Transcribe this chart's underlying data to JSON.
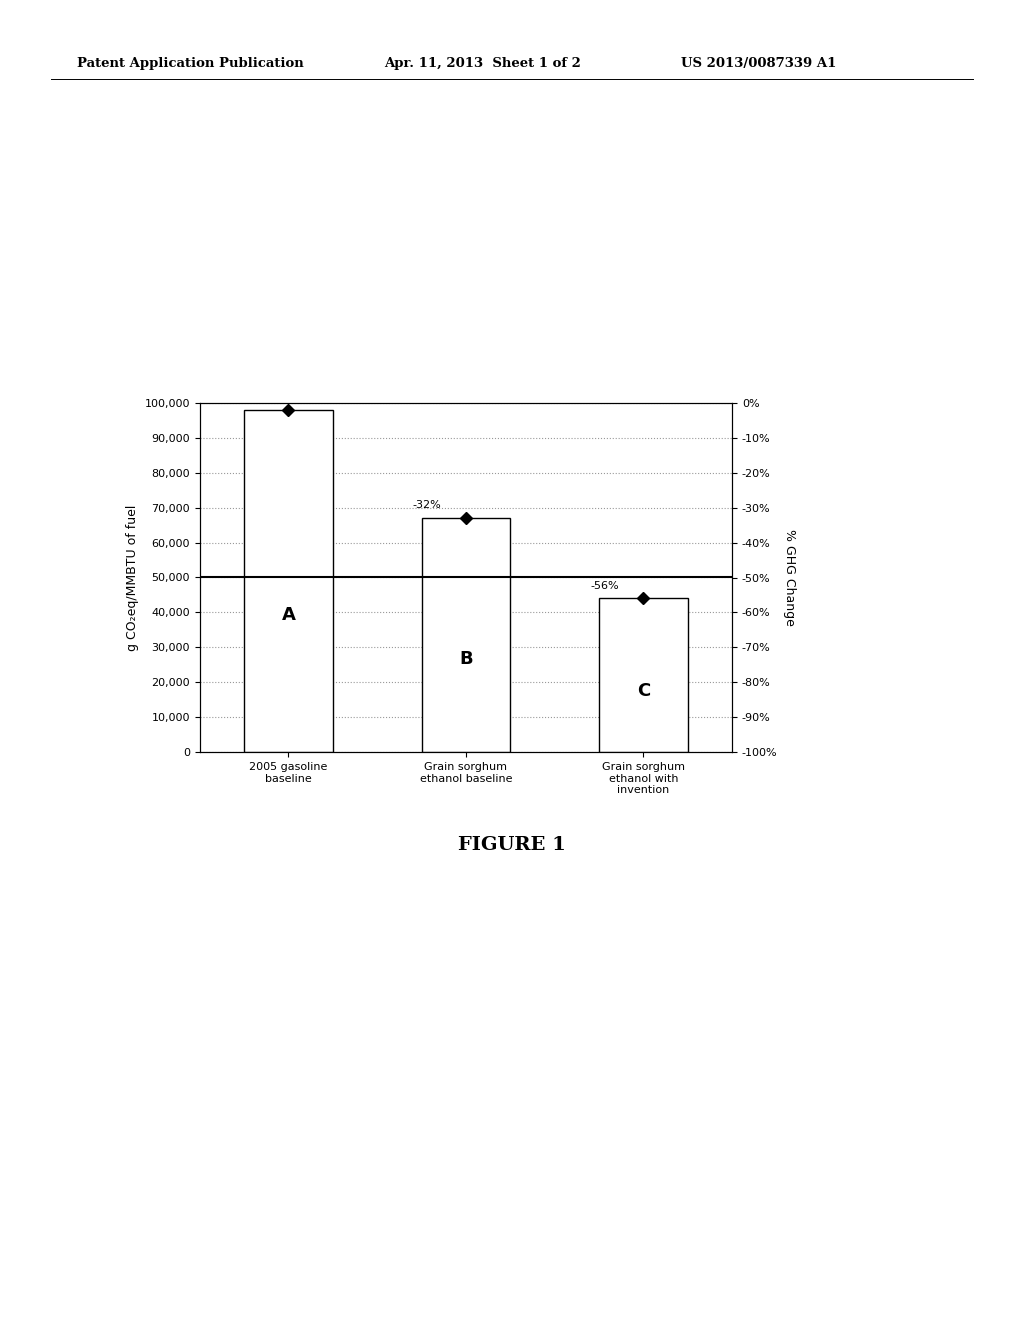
{
  "bar_values": [
    98000,
    67000,
    44000
  ],
  "bar_labels": [
    "2005 gasoline\nbaseline",
    "Grain sorghum\nethanol baseline",
    "Grain sorghum\nethanol with\ninvention"
  ],
  "bar_letters": [
    "A",
    "B",
    "C"
  ],
  "bar_color": "#ffffff",
  "bar_edgecolor": "#000000",
  "bar_width": 0.5,
  "diamond_marker": "D",
  "diamond_size": 6,
  "diamond_color": "#000000",
  "annot_b": "-32%",
  "annot_c": "-56%",
  "left_ylabel": "g CO₂eq/MMBTU of fuel",
  "right_ylabel": "% GHG Change",
  "left_yticks": [
    0,
    10000,
    20000,
    30000,
    40000,
    50000,
    60000,
    70000,
    80000,
    90000,
    100000
  ],
  "right_yticks": [
    -100,
    -90,
    -80,
    -70,
    -60,
    -50,
    -40,
    -30,
    -20,
    -10,
    0
  ],
  "right_ytick_labels": [
    "-100%",
    "-90%",
    "-80%",
    "-70%",
    "-60%",
    "-50%",
    "-40%",
    "-30%",
    "-20%",
    "-10%",
    "0%"
  ],
  "hline_value": 50000,
  "hline_color": "#000000",
  "hline_linewidth": 1.5,
  "grid_color": "#999999",
  "grid_linestyle": ":",
  "grid_linewidth": 0.8,
  "figure_caption": "FIGURE 1",
  "header_left": "Patent Application Publication",
  "header_center": "Apr. 11, 2013  Sheet 1 of 2",
  "header_right": "US 2013/0087339 A1",
  "bg_color": "#ffffff",
  "letter_fontsize": 13,
  "tick_fontsize": 8,
  "label_fontsize": 9,
  "caption_fontsize": 14,
  "header_fontsize": 9.5
}
